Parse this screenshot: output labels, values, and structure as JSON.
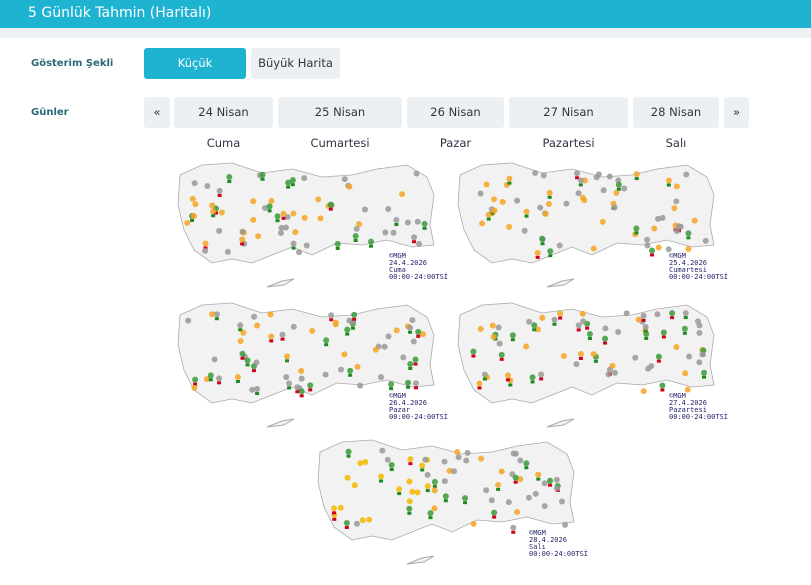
{
  "header": {
    "title": "5 Günlük Tahmin (Haritalı)"
  },
  "display": {
    "label": "Gösterim Şekli",
    "options": [
      "Küçük Haritalar",
      "Büyük Harita"
    ],
    "selected": "Küçük Haritalar"
  },
  "days": {
    "label": "Günler",
    "prev": "«",
    "next": "»",
    "items": [
      "24 Nisan Cuma",
      "25 Nisan Cumartesi",
      "26 Nisan Pazar",
      "27 Nisan Pazartesi",
      "28 Nisan Salı"
    ]
  },
  "maps": [
    {
      "source": "©MGM",
      "date": "24.4.2026",
      "day": "Cuma",
      "time": "00:00-24:00TSİ"
    },
    {
      "source": "©MGM",
      "date": "25.4.2026",
      "day": "Cumartesi",
      "time": "00:00-24:00TSİ"
    },
    {
      "source": "©MGM",
      "date": "26.4.2026",
      "day": "Pazar",
      "time": "00:00-24:00TSİ"
    },
    {
      "source": "©MGM",
      "date": "27.4.2026",
      "day": "Pazartesi",
      "time": "00:00-24:00TSİ"
    },
    {
      "source": "©MGM",
      "date": "28.4.2026",
      "day": "Salı",
      "time": "00:00-24:00TSİ"
    }
  ],
  "colors": {
    "accent": "#1fb3d2",
    "caption": "#22226a"
  }
}
